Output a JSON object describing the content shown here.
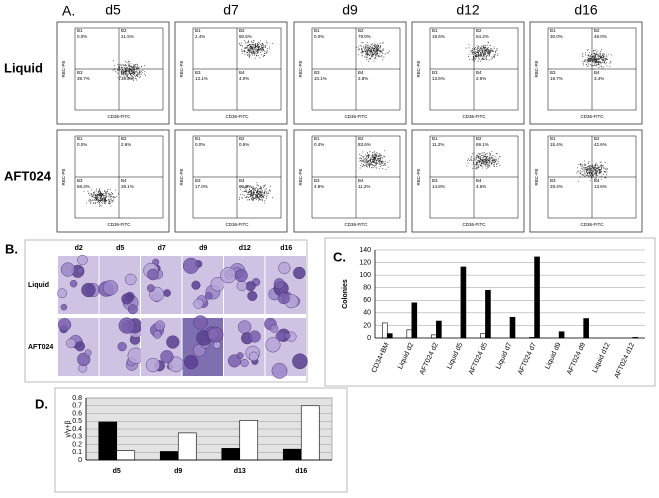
{
  "panel_a": {
    "label": "A.",
    "columns": [
      "d5",
      "d7",
      "d9",
      "d12",
      "d16"
    ],
    "x_axis": "CD36-FITC",
    "y_axis": "RBC-PE",
    "quadrant_names": [
      "B1",
      "B2",
      "B3",
      "B4"
    ],
    "rows": [
      {
        "name": "Liquid",
        "plots": [
          [
            "0.0%",
            "21.5%",
            "39.7%",
            "38.8%"
          ],
          [
            "2.4%",
            "80.5%",
            "13.1%",
            "4.0%"
          ],
          [
            "0.0%",
            "79.0%",
            "10.1%",
            "2.8%"
          ],
          [
            "19.6%",
            "64.2%",
            "13.6%",
            "2.6%"
          ],
          [
            "30.0%",
            "48.0%",
            "18.7%",
            "3.4%"
          ]
        ]
      },
      {
        "name": "AFT024",
        "plots": [
          [
            "0.0%",
            "2.6%",
            "58.3%",
            "39.1%"
          ],
          [
            "0.0%",
            "0.5%",
            "17.0%",
            "82.5%"
          ],
          [
            "0.4%",
            "83.6%",
            "4.9%",
            "11.2%"
          ],
          [
            "11.2%",
            "69.1%",
            "14.8%",
            "4.5%"
          ],
          [
            "15.4%",
            "42.6%",
            "28.4%",
            "13.6%"
          ]
        ]
      }
    ]
  },
  "panel_b": {
    "label": "B.",
    "columns": [
      "d2",
      "d5",
      "d7",
      "d9",
      "d12",
      "d16"
    ],
    "rows": [
      "Liquid",
      "AFT024"
    ]
  },
  "chart_data": [
    {
      "type": "bar",
      "label": "C.",
      "y_label": "Colonies",
      "categories": [
        "CD34+BM",
        "Liquid d2",
        "AFT024 d2",
        "Liquid d5",
        "AFT024 d5",
        "Liquid d7",
        "AFT024 d7",
        "Liquid d9",
        "AFT024 d9",
        "Liquid d12",
        "AFT024 d12"
      ],
      "series": [
        {
          "color": "#ffffff",
          "values": [
            24,
            13,
            5,
            0,
            7,
            0,
            1,
            0,
            0,
            0,
            0
          ]
        },
        {
          "color": "#000000",
          "values": [
            7,
            56,
            27,
            113,
            76,
            33,
            129,
            10,
            31,
            0,
            1
          ]
        }
      ],
      "ylim": [
        0,
        140
      ],
      "yticks": [
        0,
        20,
        40,
        60,
        80,
        100,
        120,
        140
      ],
      "grid": true
    },
    {
      "type": "bar",
      "label": "D.",
      "y_label": "γ/γ+β",
      "categories": [
        "d5",
        "d9",
        "d13",
        "d16"
      ],
      "series": [
        {
          "color": "#000000",
          "values": [
            0.49,
            0.11,
            0.15,
            0.14
          ]
        },
        {
          "color": "#ffffff",
          "values": [
            0.12,
            0.35,
            0.51,
            0.7
          ]
        }
      ],
      "ylim": [
        0,
        0.8
      ],
      "yticks": [
        0,
        0.1,
        0.2,
        0.3,
        0.4,
        0.5,
        0.6,
        0.7,
        0.8
      ],
      "grid": true
    }
  ]
}
